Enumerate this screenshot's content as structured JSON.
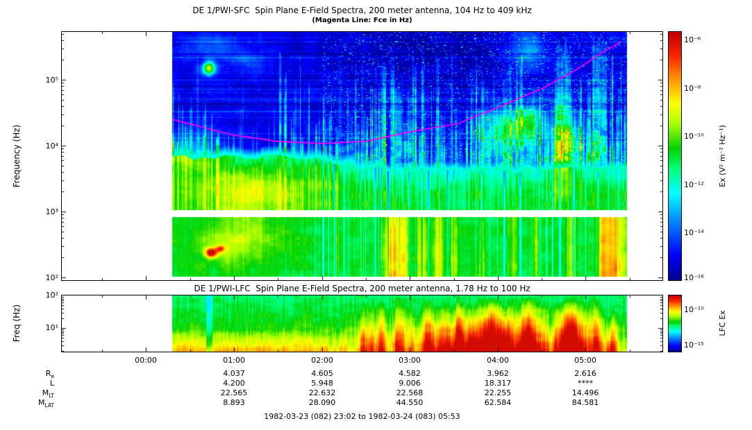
{
  "header": {
    "title": "DE 1/PWI-SFC  Spin Plane E-Field Spectra, 200 meter antenna, 104 Hz to 409 kHz",
    "subtitle": "(Magenta Line: Fce in Hz)"
  },
  "sfc": {
    "ylabel": "Frequency (Hz)",
    "yticks": [
      "10⁵",
      "10⁴",
      "10³",
      "10²"
    ],
    "colorbar": {
      "ticks": [
        "10⁻⁶",
        "10⁻⁸",
        "10⁻¹⁰",
        "10⁻¹²",
        "10⁻¹⁴",
        "10⁻¹⁶"
      ],
      "label": "Ex (V² m⁻² Hz⁻¹)"
    }
  },
  "lfc": {
    "title": "DE 1/PWI-LFC  Spin Plane E-Field Spectra, 200 meter antenna, 1.78 Hz to 100 Hz",
    "ylabel": "Freq (Hz)",
    "yticks": [
      "10²",
      "10¹"
    ],
    "colorbar": {
      "ticks": [
        "10⁻¹⁰",
        "10⁻¹⁵"
      ],
      "label": "LFC Ex"
    }
  },
  "xaxis": {
    "labels": [
      "00:00",
      "01:00",
      "02:00",
      "03:00",
      "04:00",
      "05:00"
    ]
  },
  "ephemeris": {
    "rows": [
      {
        "label": {
          "main": "R",
          "sub": "e"
        },
        "values": [
          "4.037",
          "4.605",
          "4.582",
          "3.962",
          "2.616"
        ]
      },
      {
        "label": {
          "main": "L",
          "sub": ""
        },
        "values": [
          "4.200",
          "5.948",
          "9.006",
          "18.317",
          "****"
        ]
      },
      {
        "label": {
          "main": "M",
          "sub": "LT"
        },
        "values": [
          "22.565",
          "22.632",
          "22.568",
          "22.255",
          "14.496"
        ]
      },
      {
        "label": {
          "main": "M",
          "sub": "LAT"
        },
        "values": [
          "8.893",
          "28.090",
          "44.550",
          "62.584",
          "84.581"
        ]
      }
    ]
  },
  "footer": "1982-03-23 (082) 23:02 to 1982-03-24 (083) 05:53",
  "chart_data": {
    "type": "heatmap",
    "panels": [
      {
        "id": "sfc",
        "instrument": "DE 1/PWI-SFC",
        "title": "DE 1/PWI-SFC  Spin Plane E-Field Spectra, 200 meter antenna, 104 Hz to 409 kHz",
        "x_axis": {
          "start": "1982-03-23 23:02",
          "end": "1982-03-24 05:53",
          "tick_labels": [
            "00:00",
            "01:00",
            "02:00",
            "03:00",
            "04:00",
            "05:00"
          ],
          "tick_hours": [
            0,
            1,
            2,
            3,
            4,
            5
          ]
        },
        "y_axis": {
          "label": "Frequency (Hz)",
          "scale": "log",
          "range_hz": [
            104,
            409000
          ]
        },
        "z_axis": {
          "label": "Ex (V² m⁻² Hz⁻¹)",
          "scale": "log",
          "range": [
            1e-16,
            1e-06
          ]
        },
        "data_gap_hz": [
          850,
          1050
        ],
        "data_start_hour": 0.3,
        "data_end_hour": 5.47,
        "overlay_line": {
          "name": "Fce",
          "color": "#FF00FF",
          "points_t_hours_f_hz": [
            [
              0.3,
              25000
            ],
            [
              1.0,
              14400
            ],
            [
              1.5,
              11600
            ],
            [
              2.0,
              10800
            ],
            [
              2.5,
              11600
            ],
            [
              3.0,
              16200
            ],
            [
              3.55,
              21700
            ],
            [
              4.0,
              37900
            ],
            [
              4.5,
              73000
            ],
            [
              4.9,
              144000
            ],
            [
              5.2,
              264000
            ],
            [
              5.41,
              379000
            ]
          ]
        }
      },
      {
        "id": "lfc",
        "instrument": "DE 1/PWI-LFC",
        "title": "DE 1/PWI-LFC  Spin Plane E-Field Spectra, 200 meter antenna, 1.78 Hz to 100 Hz",
        "y_axis": {
          "label": "Freq (Hz)",
          "scale": "log",
          "range_hz": [
            1.78,
            100
          ]
        },
        "z_axis": {
          "label": "LFC Ex",
          "scale": "log",
          "range": [
            1e-16,
            1e-08
          ]
        },
        "data_start_hour": 0.3,
        "data_end_hour": 5.47
      }
    ],
    "ephemeris_annotation_hours": [
      1,
      2,
      3,
      4,
      5
    ],
    "colormap": {
      "stops": [
        [
          0,
          [
            0,
            0,
            143
          ]
        ],
        [
          0.1,
          [
            0,
            0,
            255
          ]
        ],
        [
          0.25,
          [
            0,
            150,
            255
          ]
        ],
        [
          0.35,
          [
            0,
            255,
            255
          ]
        ],
        [
          0.45,
          [
            0,
            255,
            120
          ]
        ],
        [
          0.53,
          [
            0,
            210,
            0
          ]
        ],
        [
          0.63,
          [
            170,
            255,
            0
          ]
        ],
        [
          0.71,
          [
            255,
            255,
            0
          ]
        ],
        [
          0.81,
          [
            255,
            150,
            0
          ]
        ],
        [
          0.9,
          [
            255,
            40,
            0
          ]
        ],
        [
          1,
          [
            190,
            0,
            0
          ]
        ]
      ]
    },
    "texture": {
      "seed": 42,
      "sfc": {
        "boundary": {
          "base": 3.88,
          "drop": 0.2,
          "t0": 0.28,
          "tw": 0.18,
          "wiggle": 0.06
        },
        "blobs": [
          [
            0.08,
            5.18,
            0.013,
            0.1,
            0.55
          ],
          [
            0.1,
            5.5,
            0.06,
            0.22,
            0.1
          ],
          [
            0.17,
            5.28,
            0.05,
            0.18,
            0.08
          ],
          [
            0.52,
            5.35,
            0.2,
            0.45,
            -0.05
          ],
          [
            0.63,
            5.55,
            0.12,
            0.3,
            -0.035
          ],
          [
            0.73,
            4.25,
            0.05,
            0.35,
            0.22
          ],
          [
            0.785,
            4.35,
            0.03,
            0.3,
            0.26
          ],
          [
            0.78,
            5.45,
            0.04,
            0.3,
            0.18
          ],
          [
            0.86,
            4.05,
            0.035,
            0.55,
            0.3
          ],
          [
            0.16,
            3.3,
            0.1,
            0.35,
            0.17
          ],
          [
            0.14,
            2.55,
            0.09,
            0.35,
            0.16
          ],
          [
            0.085,
            2.38,
            0.013,
            0.07,
            0.5
          ],
          [
            0.105,
            2.44,
            0.01,
            0.05,
            0.3
          ],
          [
            0.05,
            3.9,
            0.06,
            0.25,
            0.2
          ]
        ],
        "streak_clusters": [
          [
            0.37,
            0.41,
            0.2,
            4.35
          ],
          [
            0.485,
            0.5,
            0.4,
            5.0
          ],
          [
            0.585,
            0.6,
            0.35,
            4.6
          ],
          [
            0.68,
            0.8,
            0.3,
            4.7
          ],
          [
            0.845,
            0.875,
            0.45,
            5.65
          ],
          [
            0.925,
            0.955,
            0.5,
            5.7
          ]
        ],
        "bottom_bumps": [
          [
            0.485,
            0.018,
            0.3
          ],
          [
            0.51,
            0.01,
            0.2
          ],
          [
            0.55,
            0.012,
            0.18
          ],
          [
            0.585,
            0.01,
            0.22
          ],
          [
            0.62,
            0.008,
            0.15
          ],
          [
            0.68,
            0.006,
            0.12
          ],
          [
            0.75,
            0.008,
            0.12
          ],
          [
            0.8,
            0.006,
            0.12
          ],
          [
            0.875,
            0.008,
            0.14
          ],
          [
            0.945,
            0.01,
            0.2
          ],
          [
            0.97,
            0.025,
            0.34
          ]
        ],
        "n_events": 520,
        "n_hlines": 30
      },
      "lfc": {
        "ramp_t": 0.3,
        "dark_stripe_t": 0.081,
        "bumps": [
          [
            0.42,
            0.01,
            0.2
          ],
          [
            0.46,
            0.008,
            0.22
          ],
          [
            0.5,
            0.015,
            0.25
          ],
          [
            0.56,
            0.01,
            0.3
          ],
          [
            0.63,
            0.012,
            0.28
          ],
          [
            0.7,
            0.01,
            0.2
          ],
          [
            0.78,
            0.01,
            0.25
          ],
          [
            0.88,
            0.02,
            0.3
          ],
          [
            0.93,
            0.015,
            0.3
          ],
          [
            0.97,
            0.01,
            0.25
          ]
        ]
      }
    }
  }
}
